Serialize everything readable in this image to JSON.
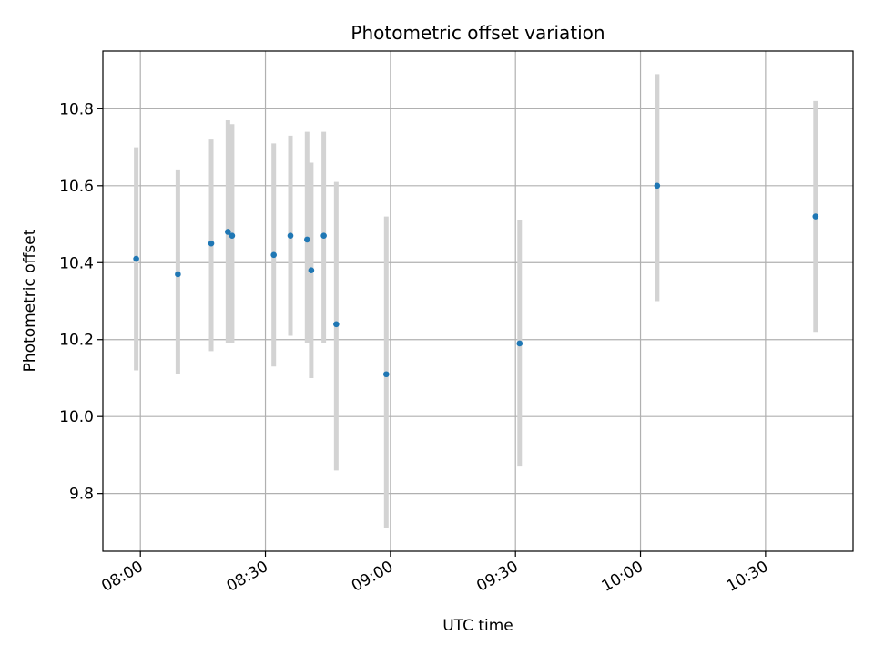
{
  "chart_data": {
    "type": "scatter",
    "title": "Photometric offset variation",
    "xlabel": "UTC time",
    "ylabel": "Photometric offset",
    "xlim": [
      "07:51",
      "10:51"
    ],
    "ylim": [
      9.65,
      10.95
    ],
    "grid": true,
    "x_ticks": [
      "08:00",
      "08:30",
      "09:00",
      "09:30",
      "10:00",
      "10:30"
    ],
    "y_ticks": [
      9.8,
      10.0,
      10.2,
      10.4,
      10.6,
      10.8
    ],
    "colors": {
      "point": "#1f77b4",
      "errorbar": "#d3d3d3"
    },
    "series": [
      {
        "points": [
          {
            "x": "07:59",
            "y": 10.41,
            "ylow": 10.12,
            "yhigh": 10.7
          },
          {
            "x": "08:09",
            "y": 10.37,
            "ylow": 10.11,
            "yhigh": 10.64
          },
          {
            "x": "08:17",
            "y": 10.45,
            "ylow": 10.17,
            "yhigh": 10.72
          },
          {
            "x": "08:21",
            "y": 10.48,
            "ylow": 10.19,
            "yhigh": 10.77
          },
          {
            "x": "08:22",
            "y": 10.47,
            "ylow": 10.19,
            "yhigh": 10.76
          },
          {
            "x": "08:32",
            "y": 10.42,
            "ylow": 10.13,
            "yhigh": 10.71
          },
          {
            "x": "08:36",
            "y": 10.47,
            "ylow": 10.21,
            "yhigh": 10.73
          },
          {
            "x": "08:40",
            "y": 10.46,
            "ylow": 10.19,
            "yhigh": 10.74
          },
          {
            "x": "08:41",
            "y": 10.38,
            "ylow": 10.1,
            "yhigh": 10.66
          },
          {
            "x": "08:44",
            "y": 10.47,
            "ylow": 10.19,
            "yhigh": 10.74
          },
          {
            "x": "08:47",
            "y": 10.24,
            "ylow": 9.86,
            "yhigh": 10.61
          },
          {
            "x": "08:59",
            "y": 10.11,
            "ylow": 9.71,
            "yhigh": 10.52
          },
          {
            "x": "09:31",
            "y": 10.19,
            "ylow": 9.87,
            "yhigh": 10.51
          },
          {
            "x": "10:04",
            "y": 10.6,
            "ylow": 10.3,
            "yhigh": 10.89
          },
          {
            "x": "10:42",
            "y": 10.52,
            "ylow": 10.22,
            "yhigh": 10.82
          }
        ]
      }
    ]
  }
}
